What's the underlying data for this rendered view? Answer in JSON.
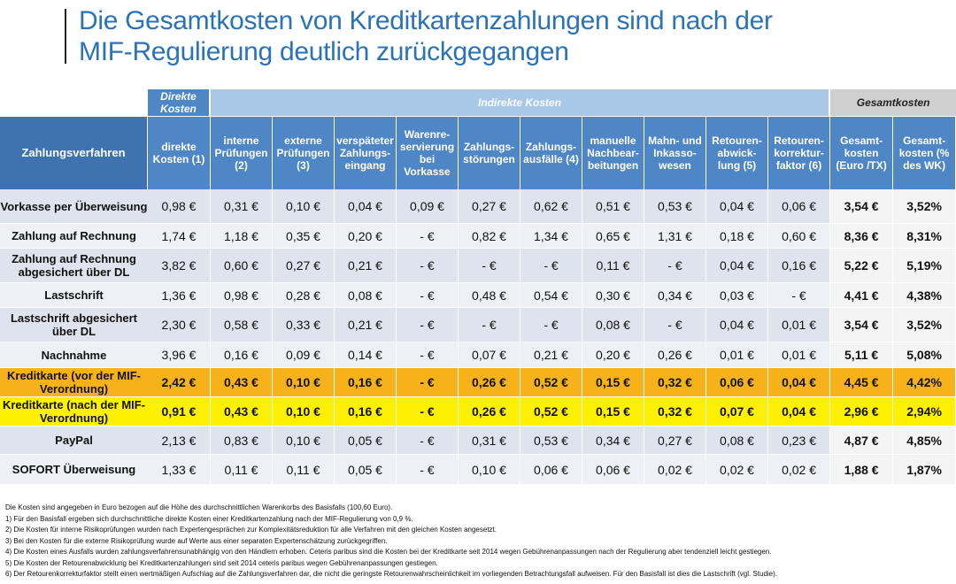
{
  "title": {
    "line1": "Die Gesamtkosten von Kreditkartenzahlungen sind nach der",
    "line2": "MIF-Regulierung deutlich zurückgegangen"
  },
  "groups": {
    "direct": "Direkte Kosten",
    "indirect": "Indirekte Kosten",
    "total": "Gesamtkosten"
  },
  "columns": [
    "Zahlungsverfahren",
    "direkte Kosten (1)",
    "interne Prüfungen (2)",
    "externe Prüfungen (3)",
    "verspäteter Zahlungs-eingang",
    "Warenre-servierung bei Vorkasse",
    "Zahlungs-störungen",
    "Zahlungs-ausfälle (4)",
    "manuelle Nachbear-beitungen",
    "Mahn- und Inkasso-wesen",
    "Retouren-abwick-lung (5)",
    "Retouren-korrektur-faktor (6)",
    "Gesamt-kosten (Euro /TX)",
    "Gesamt-kosten (% des WK)"
  ],
  "rows": [
    {
      "label": "Vorkasse per Überweisung",
      "values": [
        "0,98 €",
        "0,31 €",
        "0,10 €",
        "0,04 €",
        "0,09 €",
        "0,27 €",
        "0,62 €",
        "0,51 €",
        "0,53 €",
        "0,04 €",
        "0,06 €",
        "3,54 €",
        "3,52%"
      ]
    },
    {
      "label": "Zahlung auf Rechnung",
      "values": [
        "1,74 €",
        "1,18 €",
        "0,35 €",
        "0,20 €",
        "-  €",
        "0,82 €",
        "1,34 €",
        "0,65 €",
        "1,31 €",
        "0,18 €",
        "0,60 €",
        "8,36 €",
        "8,31%"
      ]
    },
    {
      "label": "Zahlung auf Rechnung abgesichert über DL",
      "values": [
        "3,82 €",
        "0,60 €",
        "0,27 €",
        "0,21 €",
        "-  €",
        "-  €",
        "-  €",
        "0,11 €",
        "-  €",
        "0,04 €",
        "0,16 €",
        "5,22 €",
        "5,19%"
      ]
    },
    {
      "label": "Lastschrift",
      "values": [
        "1,36 €",
        "0,98 €",
        "0,28 €",
        "0,08 €",
        "-  €",
        "0,48 €",
        "0,54 €",
        "0,30 €",
        "0,34 €",
        "0,03 €",
        "-  €",
        "4,41 €",
        "4,38%"
      ]
    },
    {
      "label": "Lastschrift abgesichert über DL",
      "values": [
        "2,30 €",
        "0,58 €",
        "0,33 €",
        "0,21 €",
        "-  €",
        "-  €",
        "-  €",
        "0,08 €",
        "-  €",
        "0,04 €",
        "0,01 €",
        "3,54 €",
        "3,52%"
      ]
    },
    {
      "label": "Nachnahme",
      "values": [
        "3,96 €",
        "0,16 €",
        "0,09 €",
        "0,14 €",
        "-  €",
        "0,07 €",
        "0,21 €",
        "0,20 €",
        "0,26 €",
        "0,01 €",
        "0,01 €",
        "5,11 €",
        "5,08%"
      ]
    },
    {
      "label": "Kreditkarte (vor der MIF-Verordnung)",
      "values": [
        "2,42 €",
        "0,43 €",
        "0,10 €",
        "0,16 €",
        "-  €",
        "0,26 €",
        "0,52 €",
        "0,15 €",
        "0,32 €",
        "0,06 €",
        "0,04 €",
        "4,45 €",
        "4,42%"
      ]
    },
    {
      "label": "Kreditkarte (nach der MIF-Verordnung)",
      "values": [
        "0,91 €",
        "0,43 €",
        "0,10 €",
        "0,16 €",
        "-  €",
        "0,26 €",
        "0,52 €",
        "0,15 €",
        "0,32 €",
        "0,07 €",
        "0,04 €",
        "2,96 €",
        "2,94%"
      ]
    },
    {
      "label": "PayPal",
      "values": [
        "2,13 €",
        "0,83 €",
        "0,10 €",
        "0,05 €",
        "-  €",
        "0,31 €",
        "0,53 €",
        "0,34 €",
        "0,27 €",
        "0,08 €",
        "0,23 €",
        "4,87 €",
        "4,85%"
      ]
    },
    {
      "label": "SOFORT Überweisung",
      "values": [
        "1,33 €",
        "0,11 €",
        "0,11 €",
        "0,05 €",
        "-  €",
        "0,10 €",
        "0,06 €",
        "0,06 €",
        "0,02 €",
        "0,02 €",
        "0,02 €",
        "1,88 €",
        "1,87%"
      ]
    }
  ],
  "notes": [
    "Die Kosten sind angegeben in Euro bezogen auf die Höhe des durchschnittlichen Warenkorbs des Basisfalls (100,60 Euro).",
    "1) Für den Basisfall ergeben sich durchschnittliche direkte Kosten einer Kreditkartenzahlung nach der MIF-Regulierung von 0,9 %.",
    "2) Die Kosten für interne Risikoprüfungen wurden nach Expertengesprächen zur Komplexitätsreduktion für alle Verfahren mit den gleichen Kosten angesetzt.",
    "3) Bei den Kosten für die externe Risikoprüfung wurde auf Werte aus einer separaten Expertenschätzung zurückgegriffen.",
    "4) Die Kosten eines Ausfalls wurden zahlungsverfahrensunabhängig von den Händlern erhoben. Ceteris paribus sind die Kosten bei der Kreditkarte seit 2014 wegen Gebührenanpassungen nach der Regulierung aber tendenziell leicht gestiegen.",
    "5) Die Kosten der Retourenabwicklung bei Kreditkartenzahlungen sind seit 2014 ceteris paribus wegen Gebührenanpassungen gestiegen.",
    "6) Der Retourenkorrekturfaktor stellt einen wertmäßigen Aufschlag auf die Zahlungsverfahren dar, die nicht die geringste Retourenwahrscheinlichkeit im vorliegenden Betrachtungsfall aufweisen. Für den Basisfall ist dies die Lastschrift (vgl. Studie)."
  ],
  "colors": {
    "title": "#2a73b8",
    "header": "#4e86c6",
    "indirect_group": "#a9c8e8",
    "highlight_before": "#f7b21b",
    "highlight_after": "#fdf000"
  }
}
